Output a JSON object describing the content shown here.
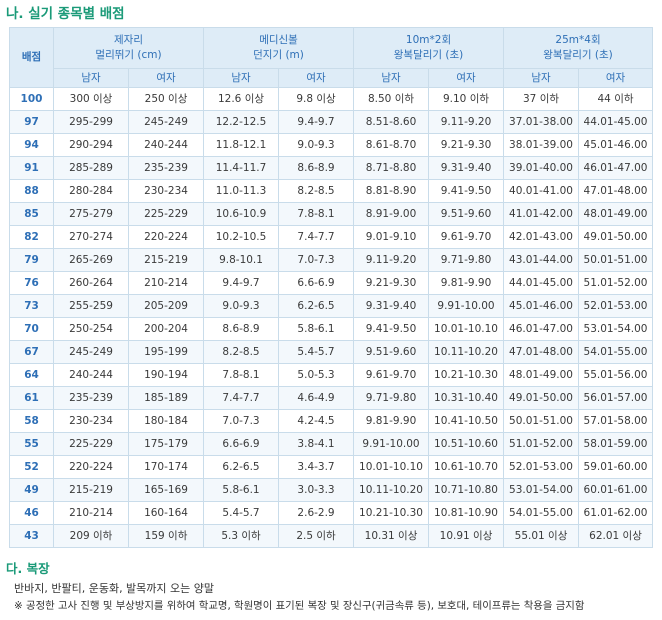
{
  "section_title": "나. 실기 종목별 배점",
  "table": {
    "score_header": "배점",
    "events": [
      {
        "line1": "제자리",
        "line2": "멀리뛰기 (cm)"
      },
      {
        "line1": "메디신볼",
        "line2": "던지기 (m)"
      },
      {
        "line1": "10m*2회",
        "line2": "왕복달리기 (초)"
      },
      {
        "line1": "25m*4회",
        "line2": "왕복달리기 (초)"
      }
    ],
    "male": "남자",
    "female": "여자",
    "rows": [
      [
        "100",
        "300 이상",
        "250 이상",
        "12.6 이상",
        "9.8 이상",
        "8.50 이하",
        "9.10 이하",
        "37 이하",
        "44 이하"
      ],
      [
        "97",
        "295-299",
        "245-249",
        "12.2-12.5",
        "9.4-9.7",
        "8.51-8.60",
        "9.11-9.20",
        "37.01-38.00",
        "44.01-45.00"
      ],
      [
        "94",
        "290-294",
        "240-244",
        "11.8-12.1",
        "9.0-9.3",
        "8.61-8.70",
        "9.21-9.30",
        "38.01-39.00",
        "45.01-46.00"
      ],
      [
        "91",
        "285-289",
        "235-239",
        "11.4-11.7",
        "8.6-8.9",
        "8.71-8.80",
        "9.31-9.40",
        "39.01-40.00",
        "46.01-47.00"
      ],
      [
        "88",
        "280-284",
        "230-234",
        "11.0-11.3",
        "8.2-8.5",
        "8.81-8.90",
        "9.41-9.50",
        "40.01-41.00",
        "47.01-48.00"
      ],
      [
        "85",
        "275-279",
        "225-229",
        "10.6-10.9",
        "7.8-8.1",
        "8.91-9.00",
        "9.51-9.60",
        "41.01-42.00",
        "48.01-49.00"
      ],
      [
        "82",
        "270-274",
        "220-224",
        "10.2-10.5",
        "7.4-7.7",
        "9.01-9.10",
        "9.61-9.70",
        "42.01-43.00",
        "49.01-50.00"
      ],
      [
        "79",
        "265-269",
        "215-219",
        "9.8-10.1",
        "7.0-7.3",
        "9.11-9.20",
        "9.71-9.80",
        "43.01-44.00",
        "50.01-51.00"
      ],
      [
        "76",
        "260-264",
        "210-214",
        "9.4-9.7",
        "6.6-6.9",
        "9.21-9.30",
        "9.81-9.90",
        "44.01-45.00",
        "51.01-52.00"
      ],
      [
        "73",
        "255-259",
        "205-209",
        "9.0-9.3",
        "6.2-6.5",
        "9.31-9.40",
        "9.91-10.00",
        "45.01-46.00",
        "52.01-53.00"
      ],
      [
        "70",
        "250-254",
        "200-204",
        "8.6-8.9",
        "5.8-6.1",
        "9.41-9.50",
        "10.01-10.10",
        "46.01-47.00",
        "53.01-54.00"
      ],
      [
        "67",
        "245-249",
        "195-199",
        "8.2-8.5",
        "5.4-5.7",
        "9.51-9.60",
        "10.11-10.20",
        "47.01-48.00",
        "54.01-55.00"
      ],
      [
        "64",
        "240-244",
        "190-194",
        "7.8-8.1",
        "5.0-5.3",
        "9.61-9.70",
        "10.21-10.30",
        "48.01-49.00",
        "55.01-56.00"
      ],
      [
        "61",
        "235-239",
        "185-189",
        "7.4-7.7",
        "4.6-4.9",
        "9.71-9.80",
        "10.31-10.40",
        "49.01-50.00",
        "56.01-57.00"
      ],
      [
        "58",
        "230-234",
        "180-184",
        "7.0-7.3",
        "4.2-4.5",
        "9.81-9.90",
        "10.41-10.50",
        "50.01-51.00",
        "57.01-58.00"
      ],
      [
        "55",
        "225-229",
        "175-179",
        "6.6-6.9",
        "3.8-4.1",
        "9.91-10.00",
        "10.51-10.60",
        "51.01-52.00",
        "58.01-59.00"
      ],
      [
        "52",
        "220-224",
        "170-174",
        "6.2-6.5",
        "3.4-3.7",
        "10.01-10.10",
        "10.61-10.70",
        "52.01-53.00",
        "59.01-60.00"
      ],
      [
        "49",
        "215-219",
        "165-169",
        "5.8-6.1",
        "3.0-3.3",
        "10.11-10.20",
        "10.71-10.80",
        "53.01-54.00",
        "60.01-61.00"
      ],
      [
        "46",
        "210-214",
        "160-164",
        "5.4-5.7",
        "2.6-2.9",
        "10.21-10.30",
        "10.81-10.90",
        "54.01-55.00",
        "61.01-62.00"
      ],
      [
        "43",
        "209 이하",
        "159 이하",
        "5.3 이하",
        "2.5 이하",
        "10.31 이상",
        "10.91 이상",
        "55.01 이상",
        "62.01 이상"
      ]
    ]
  },
  "dress": {
    "title": "다. 복장",
    "line1": "반바지, 반팔티, 운동화, 발목까지 오는 양말",
    "line2": "※ 공정한 고사 진행 및 부상방지를 위하여 학교명, 학원명이 표기된 복장 및 장신구(귀금속류 등), 보호대, 테이프류는 착용을 금지함"
  }
}
